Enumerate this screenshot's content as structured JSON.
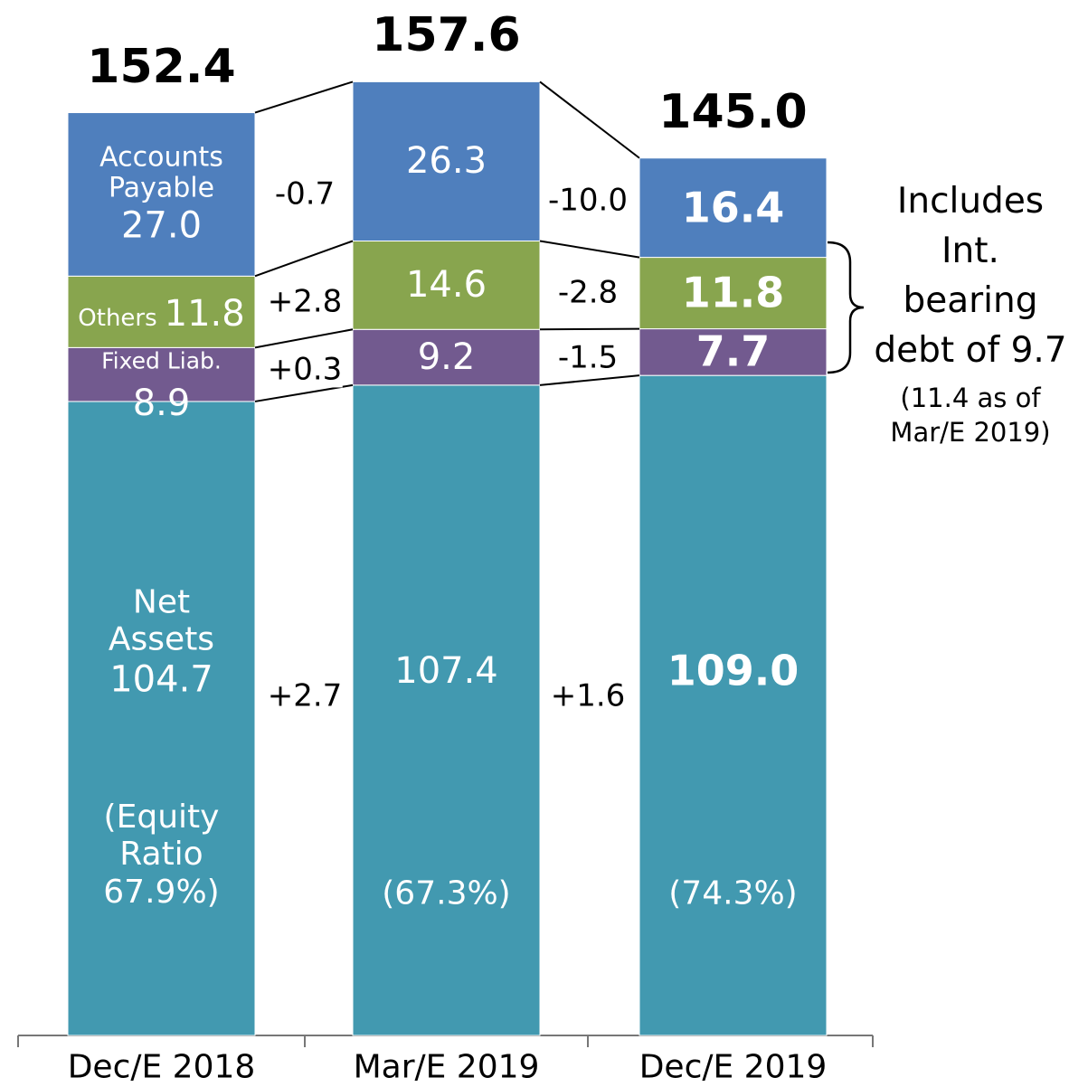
{
  "chart_data": {
    "type": "stacked_bar",
    "categories": [
      "Dec/E 2018",
      "Mar/E 2019",
      "Dec/E 2019"
    ],
    "series": [
      {
        "name": "Net Assets",
        "color": "#4299b0",
        "values": [
          104.7,
          107.4,
          109.0
        ],
        "value_labels": [
          "104.7",
          "107.4",
          "109.0"
        ]
      },
      {
        "name": "Fixed Liab.",
        "color": "#725a8f",
        "values": [
          8.9,
          9.2,
          7.7
        ]
      },
      {
        "name": "Others",
        "color": "#88a54e",
        "values": [
          11.8,
          14.6,
          11.8
        ]
      },
      {
        "name": "Accounts Payable",
        "color": "#4f7fbd",
        "values": [
          27.0,
          26.3,
          16.4
        ],
        "value_labels": [
          "27.0",
          "26.3",
          "16.4"
        ]
      }
    ],
    "totals": {
      "values": [
        152.4,
        157.6,
        145.0
      ],
      "value_labels": [
        "152.4",
        "157.6",
        "145.0"
      ]
    },
    "changes": [
      {
        "values": [
          2.7,
          1.6
        ],
        "value_labels": [
          "+2.7",
          "+1.6"
        ]
      },
      {
        "values": [
          0.3,
          -1.5
        ],
        "value_labels": [
          "+0.3",
          "-1.5"
        ]
      },
      {
        "values": [
          2.8,
          -2.8
        ],
        "value_labels": [
          "+2.8",
          "-2.8"
        ]
      },
      {
        "values": [
          -0.7,
          -10.0
        ],
        "value_labels": [
          "-0.7",
          "-10.0"
        ]
      }
    ],
    "equity_ratio": {
      "values": [
        67.9,
        67.3,
        74.3
      ],
      "value_labels": [
        "(Equity Ratio 67.9%)",
        "(67.3%)",
        "(74.3%)"
      ]
    },
    "annotation": [
      "Includes",
      "Int.",
      "bearing",
      "debt of 9.7"
    ],
    "annotation_note": [
      "(11.4 as of",
      "Mar/E 2019)"
    ],
    "ylim": [
      0,
      171
    ]
  }
}
